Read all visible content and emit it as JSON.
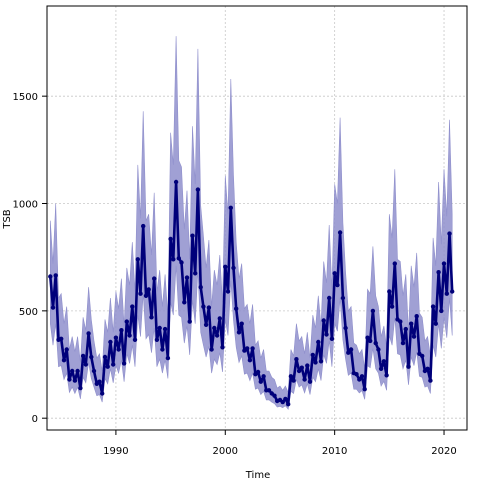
{
  "chart_data": {
    "type": "line",
    "title": "",
    "xlabel": "Time",
    "ylabel": "TSB",
    "xlim": [
      1983.7,
      2022.1
    ],
    "ylim": [
      -55,
      1920
    ],
    "x_ticks": [
      1990,
      2000,
      2010,
      2020
    ],
    "y_ticks": [
      0,
      500,
      1000,
      1500
    ],
    "grid": true,
    "series": [
      {
        "x": [
          1984.0,
          1984.25,
          1984.5,
          1984.75,
          1985.0,
          1985.25,
          1985.5,
          1985.75,
          1986.0,
          1986.25,
          1986.5,
          1986.75,
          1987.0,
          1987.25,
          1987.5,
          1987.75,
          1988.0,
          1988.25,
          1988.5,
          1988.75,
          1989.0,
          1989.25,
          1989.5,
          1989.75,
          1990.0,
          1990.25,
          1990.5,
          1990.75,
          1991.0,
          1991.25,
          1991.5,
          1991.75,
          1992.0,
          1992.25,
          1992.5,
          1992.75,
          1993.0,
          1993.25,
          1993.5,
          1993.75,
          1994.0,
          1994.25,
          1994.5,
          1994.75,
          1995.0,
          1995.25,
          1995.5,
          1995.75,
          1996.0,
          1996.25,
          1996.5,
          1996.75,
          1997.0,
          1997.25,
          1997.5,
          1997.75,
          1998.0,
          1998.25,
          1998.5,
          1998.75,
          1999.0,
          1999.25,
          1999.5,
          1999.75,
          2000.0,
          2000.25,
          2000.5,
          2000.75,
          2001.0,
          2001.25,
          2001.5,
          2001.75,
          2002.0,
          2002.25,
          2002.5,
          2002.75,
          2003.0,
          2003.25,
          2003.5,
          2003.75,
          2004.0,
          2004.25,
          2004.5,
          2004.75,
          2005.0,
          2005.25,
          2005.5,
          2005.75,
          2006.0,
          2006.25,
          2006.5,
          2006.75,
          2007.0,
          2007.25,
          2007.5,
          2007.75,
          2008.0,
          2008.25,
          2008.5,
          2008.75,
          2009.0,
          2009.25,
          2009.5,
          2009.75,
          2010.0,
          2010.25,
          2010.5,
          2010.75,
          2011.0,
          2011.25,
          2011.5,
          2011.75,
          2012.0,
          2012.25,
          2012.5,
          2012.75,
          2013.0,
          2013.25,
          2013.5,
          2013.75,
          2014.0,
          2014.25,
          2014.5,
          2014.75,
          2015.0,
          2015.25,
          2015.5,
          2015.75,
          2016.0,
          2016.25,
          2016.5,
          2016.75,
          2017.0,
          2017.25,
          2017.5,
          2017.75,
          2018.0,
          2018.25,
          2018.5,
          2018.75,
          2019.0,
          2019.25,
          2019.5,
          2019.75,
          2020.0,
          2020.25,
          2020.5,
          2020.75
        ],
        "values": [
          660,
          515,
          665,
          365,
          370,
          270,
          320,
          180,
          220,
          175,
          220,
          140,
          290,
          250,
          395,
          285,
          220,
          160,
          170,
          115,
          285,
          240,
          355,
          250,
          375,
          320,
          410,
          255,
          450,
          385,
          520,
          365,
          740,
          580,
          895,
          570,
          600,
          470,
          650,
          365,
          420,
          320,
          415,
          280,
          835,
          740,
          1100,
          745,
          725,
          540,
          655,
          450,
          850,
          675,
          1065,
          610,
          520,
          435,
          515,
          320,
          420,
          385,
          465,
          330,
          705,
          590,
          980,
          700,
          510,
          400,
          440,
          315,
          325,
          270,
          325,
          205,
          215,
          170,
          195,
          130,
          130,
          115,
          105,
          80,
          85,
          75,
          90,
          65,
          195,
          175,
          275,
          220,
          235,
          180,
          245,
          170,
          295,
          260,
          355,
          265,
          455,
          390,
          560,
          370,
          675,
          620,
          865,
          560,
          420,
          305,
          320,
          210,
          205,
          180,
          195,
          135,
          375,
          360,
          500,
          350,
          320,
          230,
          265,
          200,
          590,
          520,
          720,
          460,
          450,
          350,
          415,
          240,
          440,
          380,
          475,
          300,
          290,
          220,
          230,
          175,
          520,
          440,
          680,
          500,
          720,
          580,
          860,
          590
        ],
        "upper": [
          920,
          720,
          1000,
          560,
          580,
          440,
          520,
          320,
          380,
          310,
          380,
          260,
          470,
          410,
          610,
          460,
          360,
          280,
          300,
          220,
          460,
          400,
          560,
          400,
          590,
          510,
          650,
          430,
          700,
          620,
          820,
          590,
          1180,
          930,
          1430,
          920,
          950,
          760,
          1050,
          590,
          690,
          520,
          670,
          470,
          1330,
          1180,
          1780,
          1200,
          1170,
          880,
          1060,
          740,
          1360,
          1090,
          1720,
          990,
          850,
          700,
          830,
          520,
          690,
          620,
          760,
          540,
          1130,
          950,
          1580,
          1130,
          820,
          650,
          720,
          510,
          530,
          440,
          530,
          340,
          360,
          280,
          320,
          220,
          220,
          190,
          180,
          140,
          150,
          130,
          150,
          120,
          320,
          290,
          440,
          360,
          380,
          300,
          400,
          280,
          480,
          420,
          570,
          430,
          730,
          630,
          900,
          600,
          1090,
          1000,
          1400,
          910,
          680,
          500,
          520,
          350,
          340,
          300,
          320,
          230,
          600,
          580,
          800,
          570,
          520,
          380,
          430,
          330,
          950,
          840,
          1160,
          740,
          730,
          570,
          670,
          400,
          710,
          610,
          770,
          490,
          470,
          360,
          380,
          290,
          840,
          710,
          1100,
          810,
          1160,
          940,
          1390,
          950
        ],
        "lower": [
          440,
          340,
          440,
          240,
          245,
          180,
          210,
          120,
          145,
          115,
          145,
          90,
          190,
          165,
          260,
          185,
          145,
          105,
          110,
          75,
          185,
          160,
          230,
          165,
          245,
          210,
          270,
          170,
          300,
          255,
          340,
          240,
          480,
          380,
          580,
          370,
          390,
          305,
          420,
          240,
          275,
          210,
          270,
          185,
          540,
          480,
          710,
          480,
          470,
          350,
          430,
          295,
          550,
          440,
          690,
          400,
          340,
          285,
          335,
          210,
          275,
          250,
          305,
          215,
          460,
          385,
          640,
          455,
          330,
          260,
          290,
          205,
          210,
          175,
          210,
          135,
          140,
          110,
          125,
          85,
          85,
          75,
          68,
          52,
          55,
          49,
          58,
          42,
          125,
          115,
          180,
          145,
          155,
          118,
          160,
          110,
          190,
          170,
          230,
          175,
          295,
          255,
          360,
          240,
          440,
          405,
          560,
          365,
          275,
          200,
          210,
          135,
          135,
          118,
          128,
          88,
          245,
          235,
          325,
          230,
          210,
          150,
          172,
          130,
          385,
          340,
          470,
          300,
          295,
          230,
          270,
          155,
          285,
          245,
          310,
          195,
          190,
          145,
          150,
          115,
          340,
          285,
          440,
          325,
          470,
          375,
          560,
          385
        ]
      }
    ]
  }
}
